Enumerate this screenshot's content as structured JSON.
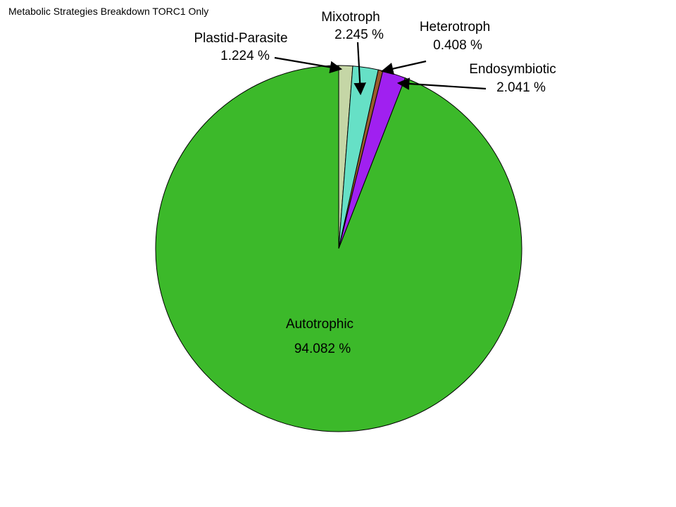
{
  "chart_data": {
    "type": "pie",
    "title": "Metabolic Strategies Breakdown TORC1 Only",
    "unit": "%",
    "start_angle": "top",
    "direction": "clockwise",
    "slices": [
      {
        "name": "Plastid-Parasite",
        "value": 1.224,
        "value_label": "1.224 %",
        "color": "#c5d6a6"
      },
      {
        "name": "Mixotroph",
        "value": 2.245,
        "value_label": "2.245 %",
        "color": "#66e0c6"
      },
      {
        "name": "Heterotroph",
        "value": 0.408,
        "value_label": "0.408 %",
        "color": "#9a5a2c"
      },
      {
        "name": "Endosymbiotic",
        "value": 2.041,
        "value_label": "2.041 %",
        "color": "#a020f0"
      },
      {
        "name": "Autotrophic",
        "value": 94.082,
        "value_label": "94.082 %",
        "color": "#3cb92a"
      }
    ]
  }
}
